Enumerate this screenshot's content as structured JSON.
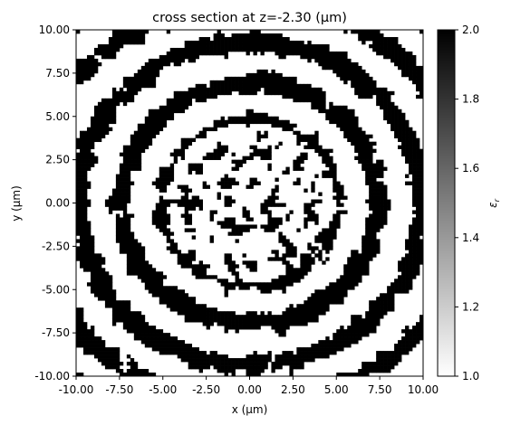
{
  "chart_data": {
    "type": "heatmap",
    "title": "cross section at z=-2.30 (μm)",
    "xlabel": "x (μm)",
    "ylabel": "y (μm)",
    "xlim": [
      -10.0,
      10.0
    ],
    "ylim": [
      -10.0,
      10.0
    ],
    "xticks": [
      "-10.00",
      "-7.50",
      "-5.00",
      "-2.50",
      "0.00",
      "2.50",
      "5.00",
      "7.50",
      "10.00"
    ],
    "yticks": [
      "-10.00",
      "-7.50",
      "-5.00",
      "-2.50",
      "0.00",
      "2.50",
      "5.00",
      "7.50",
      "10.00"
    ],
    "xtick_values": [
      -10,
      -7.5,
      -5,
      -2.5,
      0,
      2.5,
      5,
      7.5,
      10
    ],
    "ytick_values": [
      -10,
      -7.5,
      -5,
      -2.5,
      0,
      2.5,
      5,
      7.5,
      10
    ],
    "colorbar": {
      "label": "ε_r",
      "label_base": "ε",
      "label_sub": "r",
      "range": [
        1.0,
        2.0
      ],
      "tick_values": [
        1.0,
        1.2,
        1.4,
        1.6,
        1.8,
        2.0
      ],
      "ticks": [
        "1.0",
        "1.2",
        "1.4",
        "1.6",
        "1.8",
        "2.0"
      ],
      "colormap": "gray_r",
      "low_color": "#ffffff",
      "high_color": "#000000"
    },
    "field_pattern": "binarized permittivity (values 1.0 or 2.0) forming concentric ring-like bands around a central speckled region",
    "grid": false
  }
}
